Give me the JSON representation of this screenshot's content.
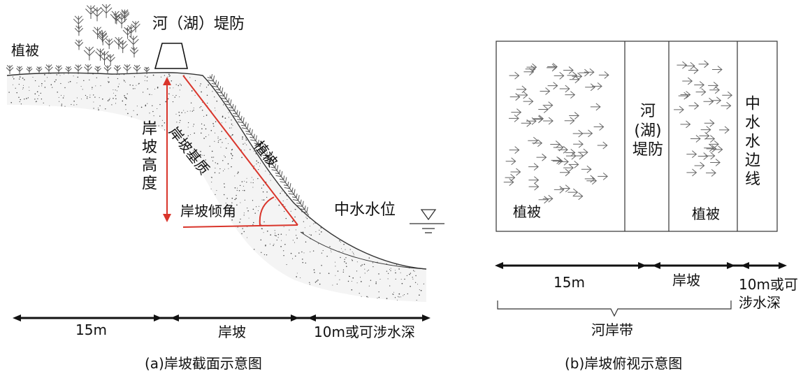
{
  "figure_a": {
    "caption": "(a)岸坡截面示意图",
    "labels": {
      "levee": "河（湖）堤防",
      "vegetation_top": "植被",
      "bank_height": "岸坡高度",
      "bank_substrate": "岸坡基质",
      "vegetation_slope": "植被",
      "bank_angle": "岸坡倾角",
      "water_level": "中水水位"
    },
    "dimensions": {
      "seg1": "15m",
      "seg2": "岸坡",
      "seg3": "10m或可涉水深"
    }
  },
  "figure_b": {
    "caption": "(b)岸坡俯视示意图",
    "labels": {
      "vegetation_left": "植被",
      "levee": "河(湖)堤防",
      "vegetation_right": "植被",
      "water_edge": "中水水边线"
    },
    "dimensions": {
      "seg1": "15m",
      "seg2": "岸坡",
      "seg3": "10m或可涉水深"
    },
    "brace_label": "河岸带"
  },
  "colors": {
    "accent_red": "#d9352b",
    "ink": "#111111",
    "vegetation": "#555555"
  }
}
